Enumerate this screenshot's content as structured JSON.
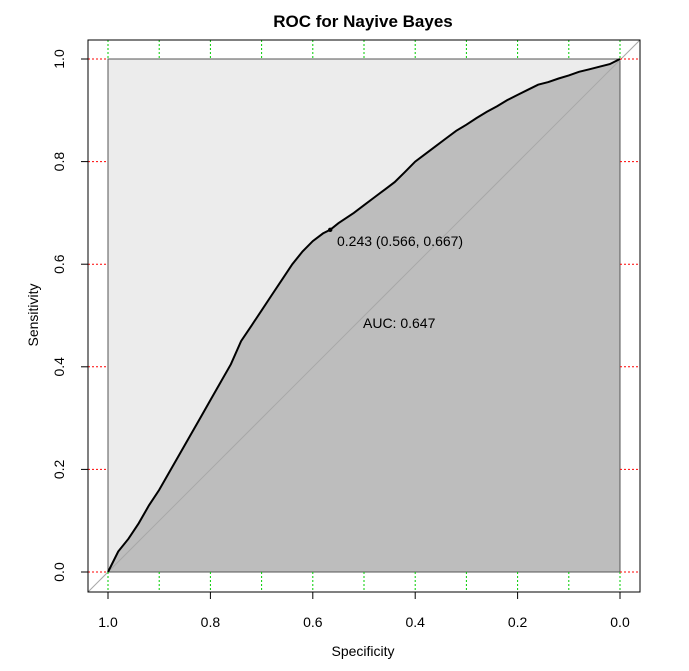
{
  "chart_data": {
    "type": "line",
    "title": "ROC for Nayive Bayes",
    "xlabel": "Specificity",
    "ylabel": "Sensitivity",
    "xlim": [
      1.0,
      0.0
    ],
    "ylim": [
      0.0,
      1.0
    ],
    "x_reversed": true,
    "x_ticks": [
      "1.0",
      "0.8",
      "0.6",
      "0.4",
      "0.2",
      "0.0"
    ],
    "y_ticks": [
      "0.0",
      "0.2",
      "0.4",
      "0.6",
      "0.8",
      "1.0"
    ],
    "grid": true,
    "grid_x_color": "#00cc00",
    "grid_y_color": "#ff0000",
    "auc_fill_color": "#bdbdbd",
    "upper_fill_color": "#ececec",
    "curve_color": "#000000",
    "series": [
      {
        "specificity": [
          1.0,
          0.98,
          0.96,
          0.94,
          0.92,
          0.9,
          0.88,
          0.86,
          0.84,
          0.82,
          0.8,
          0.78,
          0.76,
          0.74,
          0.72,
          0.7,
          0.68,
          0.66,
          0.64,
          0.62,
          0.6,
          0.58,
          0.566,
          0.55,
          0.52,
          0.5,
          0.48,
          0.46,
          0.44,
          0.42,
          0.4,
          0.38,
          0.36,
          0.34,
          0.32,
          0.3,
          0.28,
          0.26,
          0.24,
          0.22,
          0.2,
          0.18,
          0.16,
          0.14,
          0.12,
          0.1,
          0.08,
          0.06,
          0.04,
          0.02,
          0.0
        ],
        "sensitivity": [
          0.0,
          0.04,
          0.065,
          0.095,
          0.13,
          0.16,
          0.195,
          0.23,
          0.265,
          0.3,
          0.335,
          0.37,
          0.405,
          0.45,
          0.48,
          0.51,
          0.54,
          0.57,
          0.6,
          0.625,
          0.645,
          0.66,
          0.667,
          0.68,
          0.7,
          0.715,
          0.73,
          0.745,
          0.76,
          0.78,
          0.8,
          0.815,
          0.83,
          0.845,
          0.86,
          0.872,
          0.885,
          0.897,
          0.908,
          0.92,
          0.93,
          0.94,
          0.95,
          0.955,
          0.962,
          0.968,
          0.975,
          0.98,
          0.985,
          0.99,
          1.0
        ]
      }
    ],
    "threshold_point": {
      "specificity": 0.566,
      "sensitivity": 0.667,
      "label": "0.243 (0.566, 0.667)"
    },
    "auc_label": "AUC: 0.647"
  }
}
